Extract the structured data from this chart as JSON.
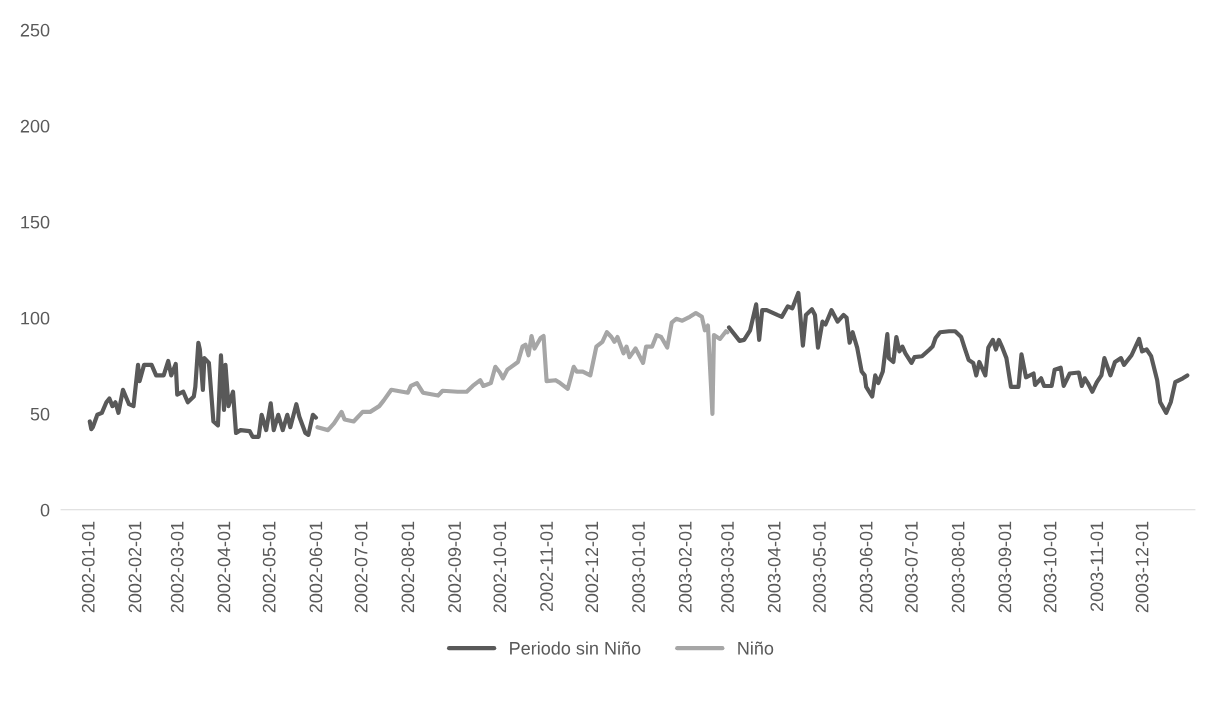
{
  "chart_data": {
    "type": "line",
    "series": [
      {
        "name": "Periodo sin Niño",
        "color": "#595959",
        "x": [
          "2002-01-01",
          "2002-01-02",
          "2002-01-03",
          "2002-01-06",
          "2002-01-09",
          "2002-01-12",
          "2002-01-14",
          "2002-01-16",
          "2002-01-18",
          "2002-01-20",
          "2002-01-23",
          "2002-01-27",
          "2002-01-30",
          "2002-02-02",
          "2002-02-03",
          "2002-02-06",
          "2002-02-11",
          "2002-02-14",
          "2002-02-19",
          "2002-02-22",
          "2002-02-24",
          "2002-02-27",
          "2002-02-28",
          "2002-03-04",
          "2002-03-07",
          "2002-03-11",
          "2002-03-12",
          "2002-03-14",
          "2002-03-15",
          "2002-03-17",
          "2002-03-18",
          "2002-03-21",
          "2002-03-24",
          "2002-03-27",
          "2002-03-29",
          "2002-03-31",
          "2002-04-01",
          "2002-04-03",
          "2002-04-06",
          "2002-04-08",
          "2002-04-11",
          "2002-04-17",
          "2002-04-19",
          "2002-04-23",
          "2002-04-25",
          "2002-04-28",
          "2002-05-01",
          "2002-05-03",
          "2002-05-06",
          "2002-05-09",
          "2002-05-12",
          "2002-05-14",
          "2002-05-18",
          "2002-05-20",
          "2002-05-24",
          "2002-05-26",
          "2002-05-29",
          "2002-05-31",
          null,
          "2003-03-01",
          "2003-03-08",
          "2003-03-11",
          "2003-03-15",
          "2003-03-19",
          "2003-03-21",
          "2003-03-23",
          "2003-03-26",
          "2003-04-02",
          "2003-04-05",
          "2003-04-09",
          "2003-04-12",
          "2003-04-16",
          "2003-04-19",
          "2003-04-21",
          "2003-04-25",
          "2003-04-27",
          "2003-04-29",
          "2003-05-02",
          "2003-05-04",
          "2003-05-08",
          "2003-05-12",
          "2003-05-16",
          "2003-05-18",
          "2003-05-20",
          "2003-05-22",
          "2003-05-25",
          "2003-05-28",
          "2003-05-30",
          "2003-05-31",
          "2003-06-04",
          "2003-06-06",
          "2003-06-08",
          "2003-06-11",
          "2003-06-14",
          "2003-06-15",
          "2003-06-18",
          "2003-06-20",
          "2003-06-22",
          "2003-06-24",
          "2003-06-26",
          "2003-06-30",
          "2003-07-02",
          "2003-07-07",
          "2003-07-12",
          "2003-07-14",
          "2003-07-16",
          "2003-07-19",
          "2003-07-25",
          "2003-07-29",
          "2003-08-02",
          "2003-08-04",
          "2003-08-07",
          "2003-08-10",
          "2003-08-12",
          "2003-08-14",
          "2003-08-18",
          "2003-08-20",
          "2003-08-23",
          "2003-08-25",
          "2003-08-27",
          "2003-08-29",
          "2003-09-01",
          "2003-09-04",
          "2003-09-09",
          "2003-09-11",
          "2003-09-14",
          "2003-09-19",
          "2003-09-20",
          "2003-09-24",
          "2003-09-26",
          "2003-10-01",
          "2003-10-03",
          "2003-10-07",
          "2003-10-09",
          "2003-10-13",
          "2003-10-19",
          "2003-10-21",
          "2003-10-23",
          "2003-10-25",
          "2003-10-28",
          "2003-10-31",
          "2003-11-03",
          "2003-11-05",
          "2003-11-09",
          "2003-11-12",
          "2003-11-16",
          "2003-11-18",
          "2003-11-23",
          "2003-11-28",
          "2003-11-30",
          "2003-12-03",
          "2003-12-06",
          "2003-12-10",
          "2003-12-12",
          "2003-12-16",
          "2003-12-19",
          "2003-12-22",
          "2003-12-27",
          "2003-12-30"
        ],
        "values": [
          46,
          42,
          43,
          49.5,
          50.5,
          56,
          58,
          54,
          56,
          50.5,
          62.5,
          55,
          54,
          75.5,
          67,
          75.5,
          75.5,
          70,
          70,
          77.5,
          70,
          76,
          60,
          61.5,
          56,
          59,
          64,
          87,
          83.5,
          62.5,
          79,
          76.5,
          46,
          44,
          80.5,
          52,
          75.5,
          54,
          61.5,
          40,
          41.5,
          41,
          38,
          38,
          49.5,
          41.5,
          55.5,
          41.5,
          49.5,
          41.5,
          49.5,
          43,
          55,
          48.5,
          40,
          39,
          49.5,
          48,
          null,
          95,
          88,
          88.5,
          93.5,
          107,
          88.5,
          104,
          104,
          101.5,
          100.5,
          106,
          105,
          113,
          85.5,
          101.5,
          104.5,
          101.5,
          84.5,
          98,
          96.5,
          104,
          98,
          101.5,
          100,
          87,
          92.5,
          84.5,
          72,
          70,
          64,
          59,
          70,
          66,
          72,
          91.5,
          79,
          77,
          90,
          82.5,
          85,
          81.5,
          76.5,
          79.5,
          80,
          83.5,
          85,
          89.5,
          92.5,
          93,
          93,
          90,
          85,
          78,
          76.5,
          70,
          77,
          70,
          84.5,
          88.5,
          83.5,
          88.5,
          85,
          79,
          64,
          64,
          81,
          69,
          71,
          65,
          68.5,
          64.5,
          64.5,
          73,
          74,
          64.5,
          71,
          71.5,
          64.5,
          68.5,
          66,
          61.5,
          66.5,
          70,
          79,
          70,
          77,
          79,
          75.5,
          80.5,
          89,
          82.5,
          83.5,
          80,
          67.5,
          56,
          50.5,
          56,
          66.5,
          68.5,
          70
        ]
      },
      {
        "name": "Niño",
        "color": "#a6a6a6",
        "x": [
          "2002-06-01",
          "2002-06-08",
          "2002-06-12",
          "2002-06-17",
          "2002-06-19",
          "2002-06-25",
          "2002-07-01",
          "2002-07-06",
          "2002-07-12",
          "2002-07-15",
          "2002-07-20",
          "2002-07-31",
          "2002-08-02",
          "2002-08-06",
          "2002-08-10",
          "2002-08-20",
          "2002-08-23",
          "2002-09-02",
          "2002-09-08",
          "2002-09-12",
          "2002-09-17",
          "2002-09-19",
          "2002-09-24",
          "2002-09-27",
          "2002-09-30",
          "2002-10-02",
          "2002-10-05",
          "2002-10-12",
          "2002-10-15",
          "2002-10-17",
          "2002-10-19",
          "2002-10-21",
          "2002-10-23",
          "2002-10-27",
          "2002-10-29",
          "2002-10-31",
          "2002-11-06",
          "2002-11-09",
          "2002-11-14",
          "2002-11-18",
          "2002-11-20",
          "2002-11-24",
          "2002-11-29",
          "2002-12-03",
          "2002-12-07",
          "2002-12-10",
          "2002-12-13",
          "2002-12-15",
          "2002-12-17",
          "2002-12-21",
          "2002-12-23",
          "2002-12-25",
          "2002-12-29",
          "2002-12-31",
          "2003-01-03",
          "2003-01-05",
          "2003-01-09",
          "2003-01-12",
          "2003-01-15",
          "2003-01-19",
          "2003-01-22",
          "2003-01-25",
          "2003-01-29",
          "2003-02-03",
          "2003-02-07",
          "2003-02-11",
          "2003-02-13",
          "2003-02-15",
          "2003-02-18",
          "2003-02-19",
          "2003-02-23",
          "2003-02-27",
          "2003-02-28"
        ],
        "values": [
          43,
          41.5,
          45,
          51,
          47,
          46,
          51,
          51,
          54,
          57,
          62.5,
          61,
          64.5,
          66,
          61,
          59.5,
          62,
          61.5,
          61.5,
          64.5,
          67.5,
          64.5,
          66,
          74.5,
          71.5,
          68.5,
          73,
          77,
          85,
          86,
          80.5,
          90.5,
          84,
          89.5,
          90.5,
          67,
          67.5,
          66,
          63,
          74.5,
          72,
          72,
          70,
          85,
          87.5,
          92.5,
          90,
          87.5,
          90,
          81.5,
          85,
          79.5,
          84,
          81,
          76.5,
          85,
          85,
          91,
          90,
          84.5,
          97.5,
          99.5,
          98.5,
          100.5,
          102.5,
          100.5,
          93.5,
          96,
          50,
          91,
          89,
          93,
          92.5
        ]
      }
    ],
    "xlim": [
      "2001-12-13",
      "2004-01-04"
    ],
    "xticks": [
      "2002-01-01",
      "2002-02-01",
      "2002-03-01",
      "2002-04-01",
      "2002-05-01",
      "2002-06-01",
      "2002-07-01",
      "2002-08-01",
      "2002-09-01",
      "2002-10-01",
      "2002-11-01",
      "2002-12-01",
      "2003-01-01",
      "2003-02-01",
      "2003-03-01",
      "2003-04-01",
      "2003-05-01",
      "2003-06-01",
      "2003-07-01",
      "2003-08-01",
      "2003-09-01",
      "2003-10-01",
      "2003-11-01",
      "2003-12-01"
    ],
    "ylim": [
      0,
      250
    ],
    "yticks": [
      0,
      50,
      100,
      150,
      200,
      250
    ],
    "legend": "bottom",
    "line_style": "solid"
  }
}
